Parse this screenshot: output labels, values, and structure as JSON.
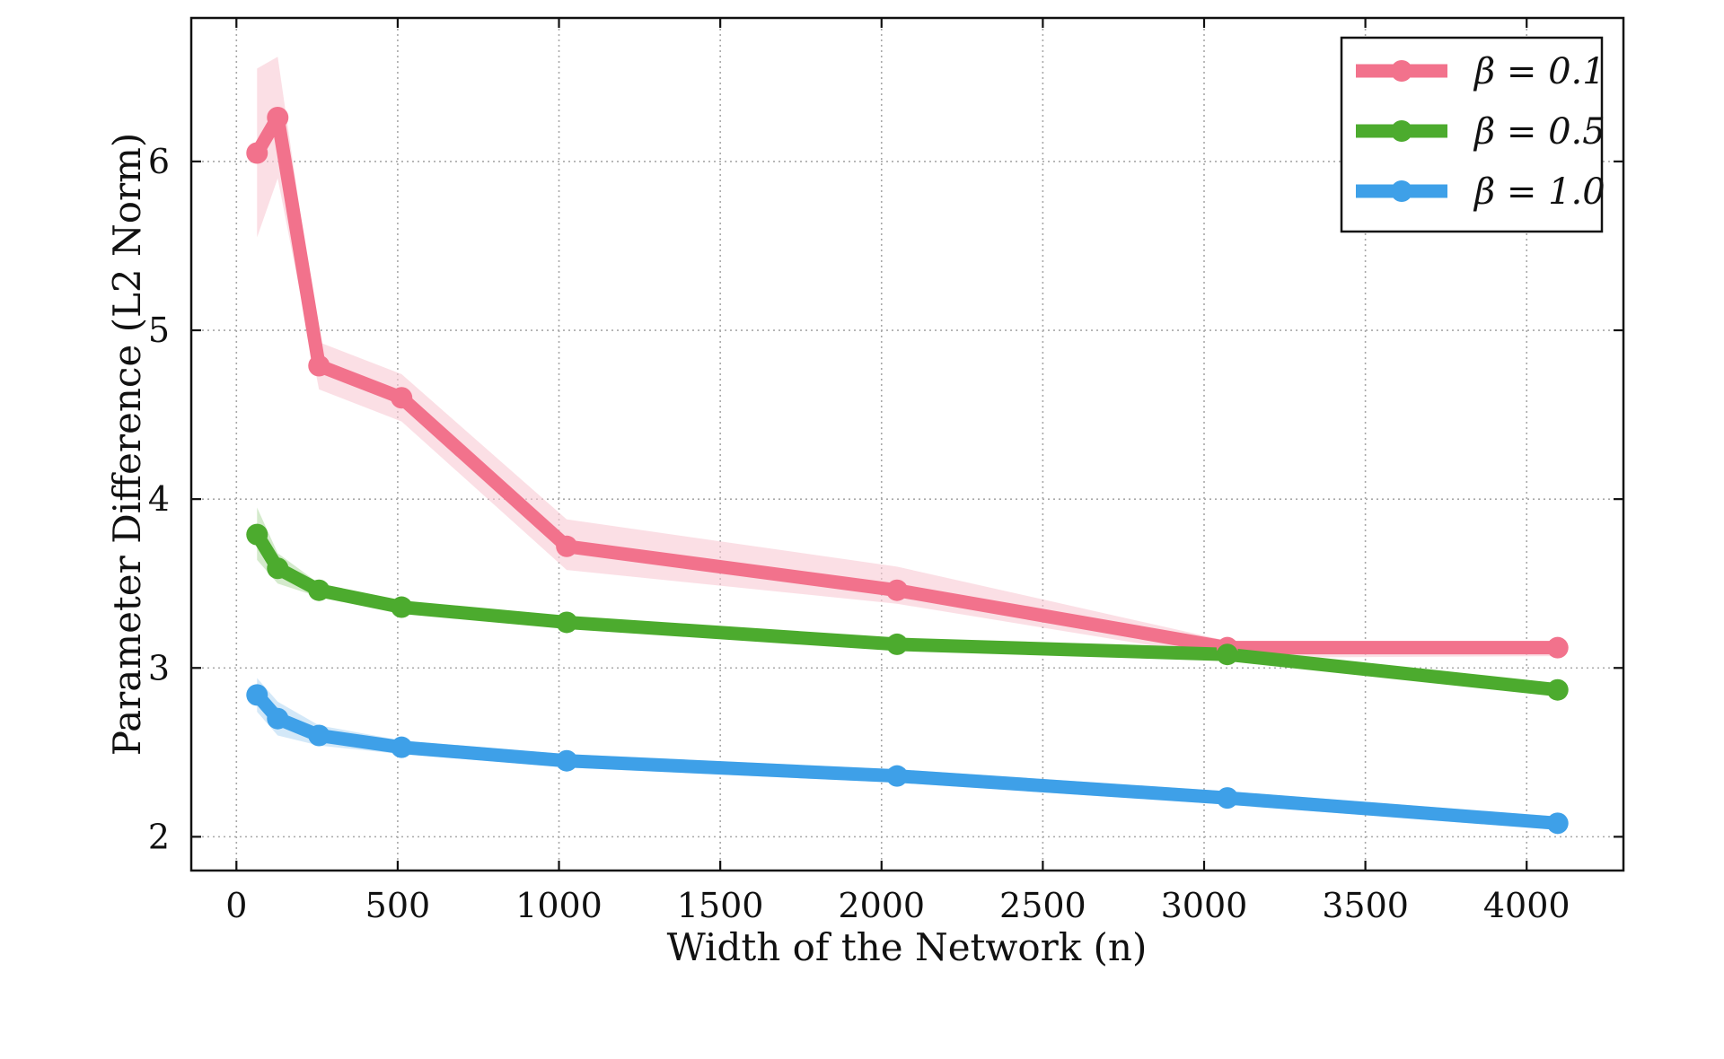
{
  "chart_data": {
    "type": "line",
    "xlabel": "Width of the Network (n)",
    "ylabel": "Parameter Difference (L2 Norm)",
    "xlim": [
      -140,
      4300
    ],
    "ylim": [
      1.8,
      6.85
    ],
    "x_ticks": [
      0,
      500,
      1000,
      1500,
      2000,
      2500,
      3000,
      3500,
      4000
    ],
    "x_tick_labels": [
      "0",
      "500",
      "1000",
      "1500",
      "2000",
      "2500",
      "3000",
      "3500",
      "4000"
    ],
    "y_ticks": [
      2,
      3,
      4,
      5,
      6
    ],
    "y_tick_labels": [
      "2",
      "3",
      "4",
      "5",
      "6"
    ],
    "grid": true,
    "legend_position": "top-right",
    "x": [
      64,
      128,
      256,
      512,
      1024,
      2048,
      3072,
      4096
    ],
    "series": [
      {
        "name": "β = 0.1",
        "color": "#f2728c",
        "band_color": "#f9c9d3",
        "values": [
          6.05,
          6.26,
          4.79,
          4.6,
          3.72,
          3.46,
          3.12,
          3.12
        ],
        "lower": [
          5.55,
          5.9,
          4.65,
          4.46,
          3.58,
          3.38,
          3.06,
          3.07
        ],
        "upper": [
          6.55,
          6.62,
          4.93,
          4.74,
          3.88,
          3.6,
          3.16,
          3.16
        ]
      },
      {
        "name": "β = 0.5",
        "color": "#4cab2e",
        "band_color": "#b7dcaa",
        "values": [
          3.79,
          3.59,
          3.46,
          3.36,
          3.27,
          3.14,
          3.08,
          2.87
        ],
        "lower": [
          3.64,
          3.5,
          3.42,
          3.33,
          3.24,
          3.11,
          3.05,
          2.84
        ],
        "upper": [
          3.95,
          3.68,
          3.5,
          3.39,
          3.3,
          3.17,
          3.11,
          2.9
        ]
      },
      {
        "name": "β = 1.0",
        "color": "#3ea0e8",
        "band_color": "#b6d9f3",
        "values": [
          2.84,
          2.7,
          2.6,
          2.53,
          2.45,
          2.36,
          2.23,
          2.08
        ],
        "lower": [
          2.74,
          2.6,
          2.54,
          2.49,
          2.41,
          2.32,
          2.19,
          2.04
        ],
        "upper": [
          2.94,
          2.8,
          2.66,
          2.57,
          2.49,
          2.4,
          2.27,
          2.12
        ]
      }
    ]
  }
}
